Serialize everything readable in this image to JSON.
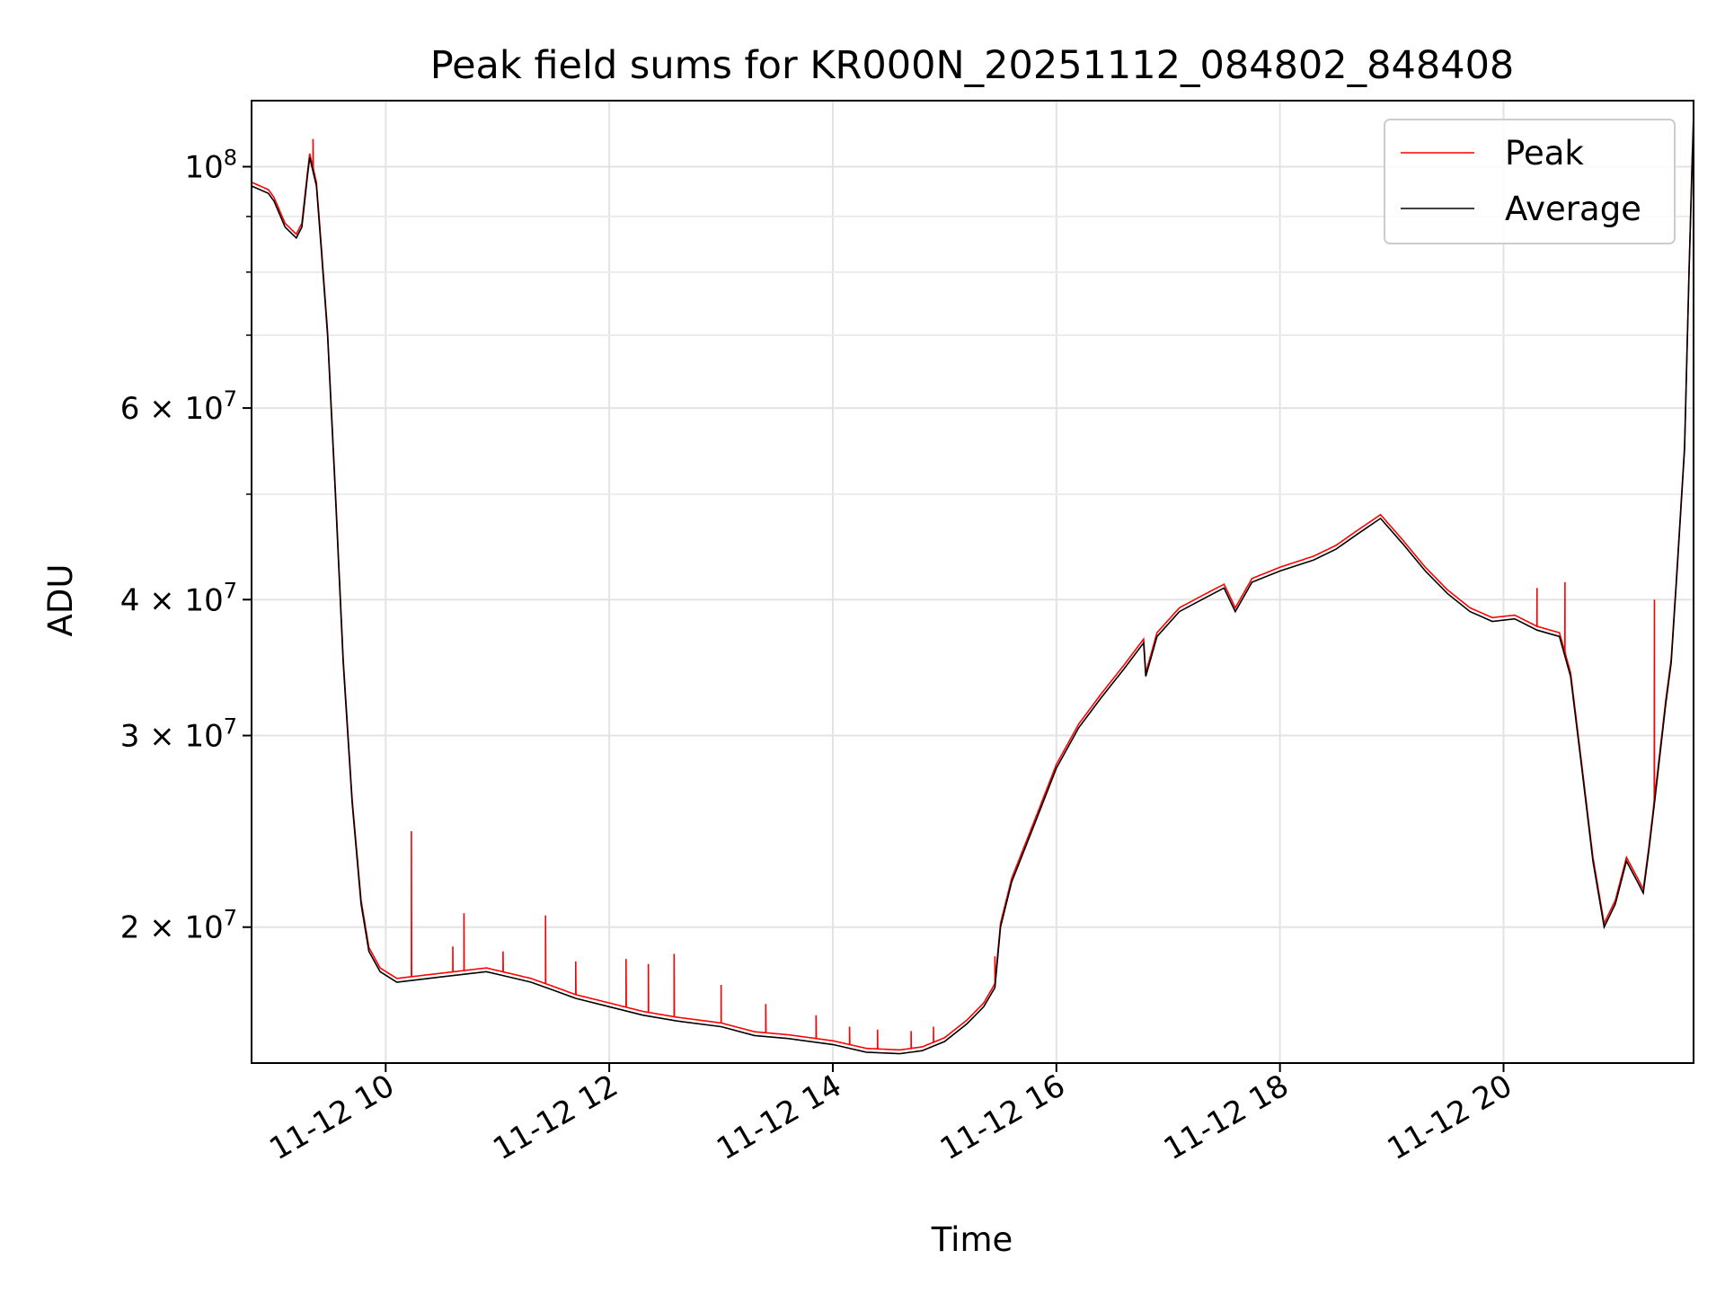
{
  "chart_data": {
    "type": "line",
    "title": "Peak field sums for KR000N_20251112_084802_848408",
    "xlabel": "Time",
    "ylabel": "ADU",
    "y_scale": "log",
    "x_unit": "hour of 2025-11-12",
    "xlim": [
      8.8,
      21.7
    ],
    "ylim": [
      15000000,
      115000000
    ],
    "x_ticks": [
      {
        "value": 10,
        "label": "11-12 10"
      },
      {
        "value": 12,
        "label": "11-12 12"
      },
      {
        "value": 14,
        "label": "11-12 14"
      },
      {
        "value": 16,
        "label": "11-12 16"
      },
      {
        "value": 18,
        "label": "11-12 18"
      },
      {
        "value": 20,
        "label": "11-12 20"
      }
    ],
    "y_major_ticks": [
      {
        "value": 20000000,
        "mantissa": "2",
        "exp": "7"
      },
      {
        "value": 30000000,
        "mantissa": "3",
        "exp": "7"
      },
      {
        "value": 40000000,
        "mantissa": "4",
        "exp": "7"
      },
      {
        "value": 60000000,
        "mantissa": "6",
        "exp": "7"
      },
      {
        "value": 100000000,
        "mantissa": "",
        "exp": "8"
      }
    ],
    "y_minor_gridlines": [
      50000000,
      70000000,
      80000000,
      90000000
    ],
    "grid": true,
    "legend_position": "top-right",
    "series": [
      {
        "name": "Average",
        "color": "#000000",
        "points": [
          [
            8.8,
            96000000
          ],
          [
            8.95,
            94500000
          ],
          [
            9.0,
            93000000
          ],
          [
            9.1,
            88000000
          ],
          [
            9.2,
            86000000
          ],
          [
            9.25,
            88000000
          ],
          [
            9.3,
            98000000
          ],
          [
            9.32,
            102000000
          ],
          [
            9.38,
            96000000
          ],
          [
            9.42,
            85000000
          ],
          [
            9.48,
            70000000
          ],
          [
            9.55,
            50000000
          ],
          [
            9.62,
            35000000
          ],
          [
            9.7,
            26000000
          ],
          [
            9.78,
            21000000
          ],
          [
            9.85,
            19000000
          ],
          [
            9.95,
            18200000
          ],
          [
            10.1,
            17800000
          ],
          [
            10.3,
            17900000
          ],
          [
            10.5,
            18000000
          ],
          [
            10.7,
            18100000
          ],
          [
            10.9,
            18200000
          ],
          [
            11.1,
            18000000
          ],
          [
            11.3,
            17800000
          ],
          [
            11.5,
            17500000
          ],
          [
            11.7,
            17200000
          ],
          [
            12.0,
            16900000
          ],
          [
            12.3,
            16600000
          ],
          [
            12.6,
            16400000
          ],
          [
            13.0,
            16200000
          ],
          [
            13.3,
            15900000
          ],
          [
            13.6,
            15800000
          ],
          [
            14.0,
            15600000
          ],
          [
            14.3,
            15350000
          ],
          [
            14.6,
            15300000
          ],
          [
            14.8,
            15400000
          ],
          [
            15.0,
            15700000
          ],
          [
            15.2,
            16300000
          ],
          [
            15.35,
            16900000
          ],
          [
            15.45,
            17600000
          ],
          [
            15.5,
            20000000
          ],
          [
            15.6,
            22000000
          ],
          [
            15.8,
            24800000
          ],
          [
            16.0,
            28000000
          ],
          [
            16.2,
            30500000
          ],
          [
            16.4,
            32500000
          ],
          [
            16.6,
            34500000
          ],
          [
            16.78,
            36500000
          ],
          [
            16.8,
            34000000
          ],
          [
            16.9,
            37000000
          ],
          [
            17.1,
            39000000
          ],
          [
            17.3,
            40000000
          ],
          [
            17.5,
            41000000
          ],
          [
            17.6,
            39000000
          ],
          [
            17.75,
            41500000
          ],
          [
            18.0,
            42500000
          ],
          [
            18.3,
            43500000
          ],
          [
            18.5,
            44500000
          ],
          [
            18.7,
            46000000
          ],
          [
            18.9,
            47500000
          ],
          [
            19.1,
            45000000
          ],
          [
            19.3,
            42500000
          ],
          [
            19.5,
            40500000
          ],
          [
            19.7,
            39000000
          ],
          [
            19.9,
            38200000
          ],
          [
            20.1,
            38400000
          ],
          [
            20.3,
            37500000
          ],
          [
            20.5,
            37000000
          ],
          [
            20.6,
            34000000
          ],
          [
            20.7,
            28000000
          ],
          [
            20.8,
            23000000
          ],
          [
            20.9,
            20000000
          ],
          [
            21.0,
            21000000
          ],
          [
            21.1,
            23000000
          ],
          [
            21.2,
            22000000
          ],
          [
            21.25,
            21500000
          ],
          [
            21.3,
            23500000
          ],
          [
            21.35,
            26000000
          ],
          [
            21.45,
            32000000
          ],
          [
            21.5,
            35000000
          ],
          [
            21.55,
            42000000
          ],
          [
            21.62,
            55000000
          ],
          [
            21.66,
            80000000
          ],
          [
            21.7,
            112000000
          ]
        ]
      },
      {
        "name": "Peak",
        "color": "#ff0000",
        "spikes": [
          [
            9.35,
            106000000
          ],
          [
            10.23,
            24500000
          ],
          [
            10.6,
            19200000
          ],
          [
            10.7,
            20600000
          ],
          [
            11.05,
            19000000
          ],
          [
            11.43,
            20500000
          ],
          [
            11.7,
            18600000
          ],
          [
            12.15,
            18700000
          ],
          [
            12.35,
            18500000
          ],
          [
            12.58,
            18900000
          ],
          [
            13.0,
            17700000
          ],
          [
            13.4,
            17000000
          ],
          [
            13.85,
            16600000
          ],
          [
            14.15,
            16200000
          ],
          [
            14.4,
            16100000
          ],
          [
            14.7,
            16050000
          ],
          [
            14.9,
            16200000
          ],
          [
            15.45,
            18800000
          ],
          [
            20.3,
            41000000
          ],
          [
            20.55,
            41500000
          ],
          [
            21.35,
            40000000
          ]
        ]
      }
    ]
  }
}
